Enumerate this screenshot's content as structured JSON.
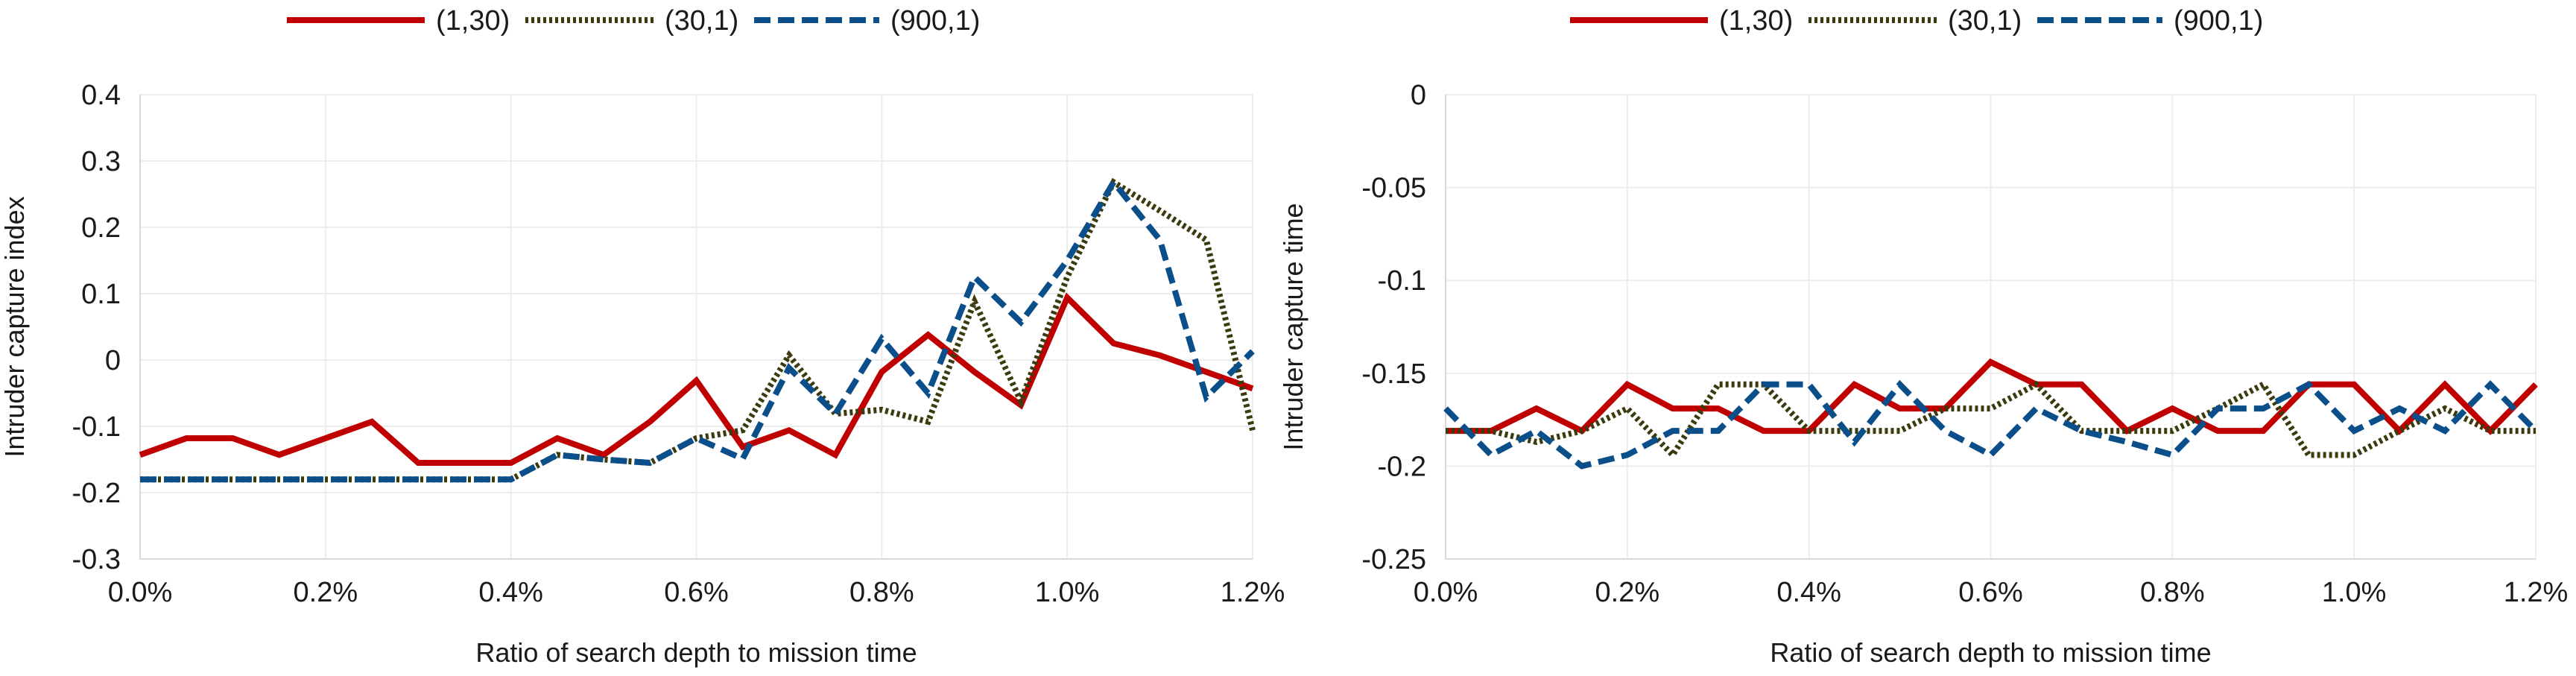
{
  "colors": {
    "s1": "#C00000",
    "s2": "#3B3B0E",
    "s3": "#0B4F8A",
    "grid": "#ececec",
    "axis": "#d9d9d9"
  },
  "chart_data": [
    {
      "type": "line",
      "xlabel": "Ratio of search depth to mission time",
      "ylabel": "Intruder capture index",
      "xlim": [
        0,
        1.2
      ],
      "ylim": [
        -0.3,
        0.4
      ],
      "xticks": [
        0,
        0.2,
        0.4,
        0.6,
        0.8,
        1.0,
        1.2
      ],
      "xtick_labels": [
        "0.0%",
        "0.2%",
        "0.4%",
        "0.6%",
        "0.8%",
        "1.0%",
        "1.2%"
      ],
      "yticks": [
        -0.3,
        -0.2,
        -0.1,
        0,
        0.1,
        0.2,
        0.3,
        0.4
      ],
      "ytick_labels": [
        "-0.3",
        "-0.2",
        "-0.1",
        "0",
        "0.1",
        "0.2",
        "0.3",
        "0.4"
      ],
      "legend": [
        "(1,30)",
        "(30,1)",
        "(900,1)"
      ],
      "x": [
        0,
        0.05,
        0.1,
        0.15,
        0.2,
        0.25,
        0.3,
        0.35,
        0.4,
        0.45,
        0.5,
        0.55,
        0.6,
        0.65,
        0.7,
        0.75,
        0.8,
        0.85,
        0.9,
        0.95,
        1.0,
        1.05,
        1.1,
        1.15,
        1.2
      ],
      "series": [
        {
          "name": "(1,30)",
          "values": [
            -0.143,
            -0.118,
            -0.118,
            -0.143,
            -0.118,
            -0.093,
            -0.155,
            -0.155,
            -0.155,
            -0.118,
            -0.143,
            -0.093,
            -0.031,
            -0.131,
            -0.106,
            -0.143,
            -0.018,
            0.038,
            -0.018,
            -0.068,
            0.094,
            0.025,
            0.007,
            -0.018,
            -0.043
          ]
        },
        {
          "name": "(30,1)",
          "values": [
            -0.18,
            -0.18,
            -0.18,
            -0.18,
            -0.18,
            -0.18,
            -0.18,
            -0.18,
            -0.18,
            -0.143,
            -0.15,
            -0.155,
            -0.118,
            -0.106,
            0.007,
            -0.081,
            -0.075,
            -0.093,
            0.088,
            -0.062,
            0.125,
            0.268,
            0.225,
            0.181,
            -0.106
          ]
        },
        {
          "name": "(900,1)",
          "values": [
            -0.18,
            -0.18,
            -0.18,
            -0.18,
            -0.18,
            -0.18,
            -0.18,
            -0.18,
            -0.18,
            -0.143,
            -0.15,
            -0.155,
            -0.118,
            -0.149,
            -0.012,
            -0.081,
            0.032,
            -0.05,
            0.125,
            0.057,
            0.15,
            0.268,
            0.181,
            -0.056,
            0.013
          ]
        }
      ]
    },
    {
      "type": "line",
      "xlabel": "Ratio of search depth to mission time",
      "ylabel": "Intruder capture time",
      "xlim": [
        0,
        1.2
      ],
      "ylim": [
        -0.25,
        0
      ],
      "xticks": [
        0,
        0.2,
        0.4,
        0.6,
        0.8,
        1.0,
        1.2
      ],
      "xtick_labels": [
        "0.0%",
        "0.2%",
        "0.4%",
        "0.6%",
        "0.8%",
        "1.0%",
        "1.2%"
      ],
      "yticks": [
        -0.25,
        -0.2,
        -0.15,
        -0.1,
        -0.05,
        0
      ],
      "ytick_labels": [
        "-0.25",
        "-0.2",
        "-0.15",
        "-0.1",
        "-0.05",
        "0"
      ],
      "legend": [
        "(1,30)",
        "(30,1)",
        "(900,1)"
      ],
      "x": [
        0,
        0.05,
        0.1,
        0.15,
        0.2,
        0.25,
        0.3,
        0.35,
        0.4,
        0.45,
        0.5,
        0.55,
        0.6,
        0.65,
        0.7,
        0.75,
        0.8,
        0.85,
        0.9,
        0.95,
        1.0,
        1.05,
        1.1,
        1.15,
        1.2
      ],
      "series": [
        {
          "name": "(1,30)",
          "values": [
            -0.181,
            -0.181,
            -0.169,
            -0.181,
            -0.156,
            -0.169,
            -0.169,
            -0.181,
            -0.181,
            -0.156,
            -0.169,
            -0.169,
            -0.144,
            -0.156,
            -0.156,
            -0.181,
            -0.169,
            -0.181,
            -0.181,
            -0.156,
            -0.156,
            -0.181,
            -0.156,
            -0.181,
            -0.156
          ]
        },
        {
          "name": "(30,1)",
          "values": [
            -0.181,
            -0.181,
            -0.187,
            -0.181,
            -0.169,
            -0.194,
            -0.156,
            -0.156,
            -0.181,
            -0.181,
            -0.181,
            -0.169,
            -0.169,
            -0.156,
            -0.181,
            -0.181,
            -0.181,
            -0.169,
            -0.156,
            -0.194,
            -0.194,
            -0.181,
            -0.169,
            -0.181,
            -0.181
          ]
        },
        {
          "name": "(900,1)",
          "values": [
            -0.169,
            -0.194,
            -0.181,
            -0.2,
            -0.194,
            -0.181,
            -0.181,
            -0.156,
            -0.156,
            -0.187,
            -0.156,
            -0.181,
            -0.194,
            -0.169,
            -0.181,
            -0.187,
            -0.194,
            -0.169,
            -0.169,
            -0.156,
            -0.181,
            -0.169,
            -0.181,
            -0.156,
            -0.181
          ]
        }
      ]
    }
  ]
}
